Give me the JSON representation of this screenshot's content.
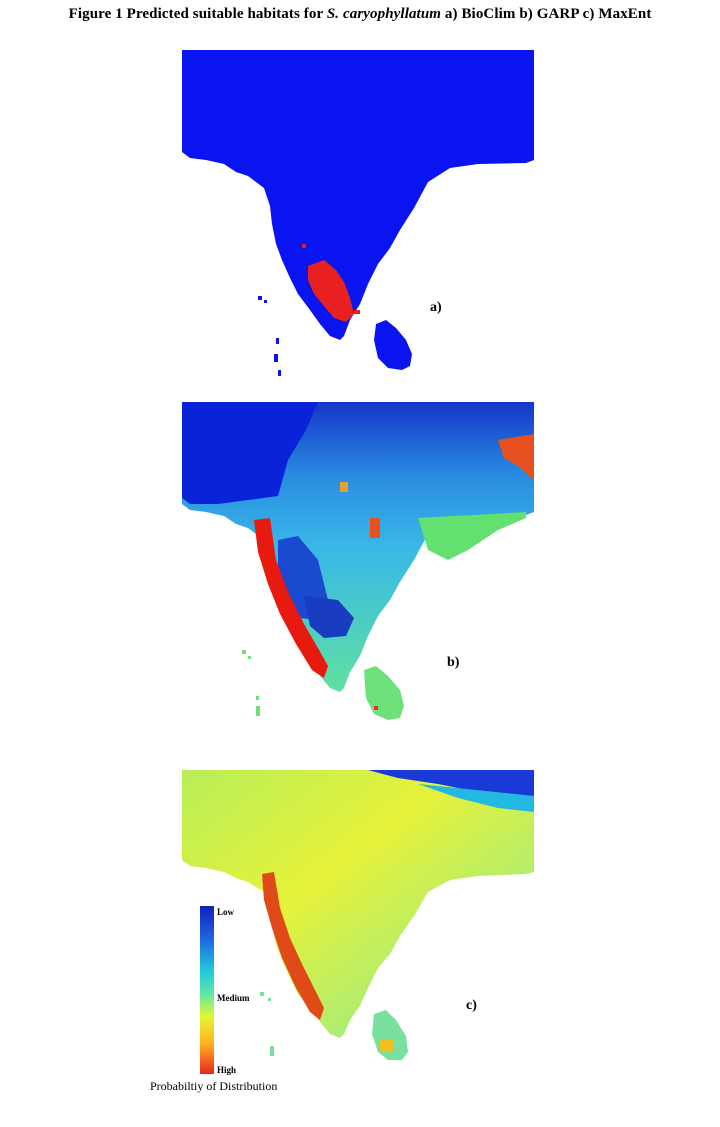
{
  "figure": {
    "caption_prefix": "Figure 1 Predicted suitable habitats for ",
    "caption_species": "S. caryophyllatum",
    "caption_suffix": " a) BioClim b) GARP c) MaxEnt"
  },
  "panels": [
    {
      "label": "a)",
      "method": "BioClim"
    },
    {
      "label": "b)",
      "method": "GARP"
    },
    {
      "label": "c)",
      "method": "MaxEnt"
    }
  ],
  "legend": {
    "low": "Low",
    "medium": "Medium",
    "high": "High",
    "title": "Probabiltiy of Distribution",
    "colors": [
      "#1022b8",
      "#20c6e0",
      "#e6f530",
      "#e8261a"
    ]
  }
}
